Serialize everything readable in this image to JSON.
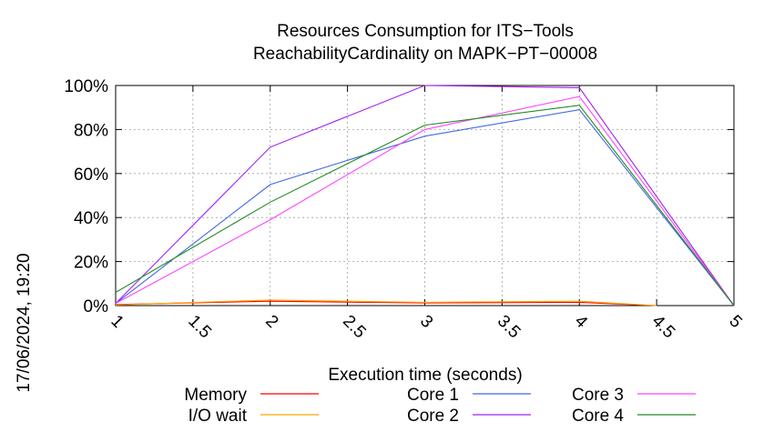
{
  "chart_data": {
    "type": "line",
    "title": "Resources Consumption for ITS−Tools",
    "subtitle": "ReachabilityCardinality on MAPK−PT−00008",
    "xlabel": "Execution time (seconds)",
    "ylabel": "",
    "side_label": "17/06/2024, 19:20",
    "xlim": [
      1,
      5
    ],
    "ylim": [
      0,
      100
    ],
    "x_ticks": [
      1,
      1.5,
      2,
      2.5,
      3,
      3.5,
      4,
      4.5,
      5
    ],
    "x_tick_labels": [
      "1",
      "1.5",
      "2",
      "2.5",
      "3",
      "3.5",
      "4",
      "4.5",
      "5"
    ],
    "y_ticks": [
      0,
      20,
      40,
      60,
      80,
      100
    ],
    "y_tick_labels": [
      "0%",
      "20%",
      "40%",
      "60%",
      "80%",
      "100%"
    ],
    "grid": true,
    "legend_position": "bottom",
    "series": [
      {
        "name": "Memory",
        "color": "#ff0000",
        "x": [
          1,
          2,
          3,
          4,
          4.5
        ],
        "y": [
          0.5,
          2,
          1.2,
          1.5,
          0
        ]
      },
      {
        "name": "I/O wait",
        "color": "#ffa500",
        "x": [
          1,
          2,
          3,
          4,
          4.5
        ],
        "y": [
          0.3,
          2.5,
          1.5,
          2,
          0
        ]
      },
      {
        "name": "Core 1",
        "color": "#4169e1",
        "x": [
          1,
          2,
          3,
          4,
          5
        ],
        "y": [
          1,
          55,
          77,
          89,
          0
        ]
      },
      {
        "name": "Core 2",
        "color": "#a020f0",
        "x": [
          1,
          2,
          3,
          4,
          5
        ],
        "y": [
          1,
          72,
          100,
          99,
          0
        ]
      },
      {
        "name": "Core 3",
        "color": "#ff44ff",
        "x": [
          1,
          2,
          3,
          4,
          5
        ],
        "y": [
          1,
          39,
          80,
          95,
          0
        ]
      },
      {
        "name": "Core 4",
        "color": "#228b22",
        "x": [
          1,
          2,
          3,
          4,
          5
        ],
        "y": [
          6,
          47,
          82,
          91,
          0
        ]
      }
    ]
  }
}
